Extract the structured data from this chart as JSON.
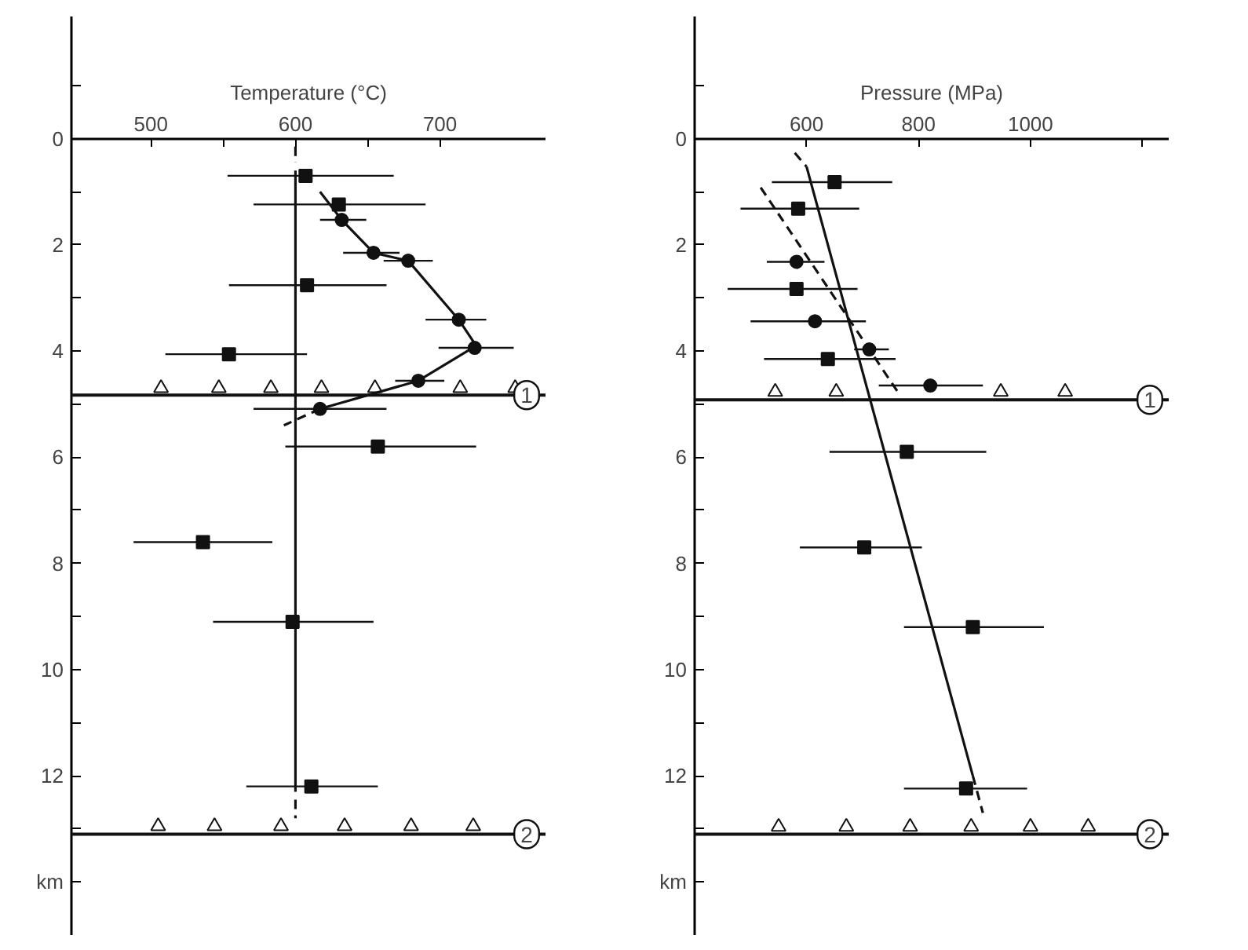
{
  "chart_data": [
    {
      "type": "scatter",
      "xlabel": "Temperature (°C)",
      "xlim": [
        445,
        773
      ],
      "ylim": [
        15,
        -2.3
      ],
      "xticks": [
        500,
        {
          "value": 550,
          "label": null
        },
        600,
        {
          "value": 650,
          "label": null
        },
        700
      ],
      "yticks": [
        {
          "value": -1,
          "label": null
        },
        0,
        {
          "value": 1,
          "label": null
        },
        2,
        {
          "value": 3,
          "label": null
        },
        4,
        {
          "value": 5,
          "label": null
        },
        6,
        {
          "value": 7,
          "label": null
        },
        8,
        {
          "value": 9,
          "label": null
        },
        10,
        {
          "value": 11,
          "label": null
        },
        12,
        {
          "value": 13,
          "label": null
        },
        {
          "value": 14,
          "label": "km"
        }
      ],
      "series": [
        {
          "marker": "square",
          "color": "#111111",
          "x": [
            607,
            630,
            608,
            554,
            657,
            536,
            598,
            611
          ],
          "values": [
            0.7,
            1.24,
            2.76,
            4.06,
            5.8,
            7.6,
            9.1,
            12.2
          ],
          "xerrors": [
            [
              553,
              668
            ],
            [
              571,
              690
            ],
            [
              554,
              663
            ],
            [
              510,
              608
            ],
            [
              593,
              725
            ],
            [
              488,
              584
            ],
            [
              543,
              654
            ],
            [
              566,
              657
            ]
          ]
        },
        {
          "marker": "circle",
          "color": "#111111",
          "x": [
            632,
            654,
            678,
            713,
            724,
            685,
            617
          ],
          "values": [
            1.53,
            2.15,
            2.3,
            3.41,
            3.94,
            4.56,
            5.09
          ],
          "xerrors": [
            [
              617,
              649
            ],
            [
              633,
              672
            ],
            [
              661,
              695
            ],
            [
              690,
              732
            ],
            [
              699,
              751
            ],
            [
              669,
              703
            ],
            [
              571,
              663
            ]
          ]
        },
        {
          "marker": "triangle",
          "color": "#ffffff",
          "x": [
            507,
            547,
            583,
            618,
            655,
            714,
            752
          ],
          "values": [
            4.7,
            4.7,
            4.7,
            4.7,
            4.7,
            4.7,
            4.7
          ]
        },
        {
          "marker": "triangle",
          "color": "#ffffff",
          "x": [
            505,
            544,
            590,
            634,
            680,
            723
          ],
          "values": [
            12.95,
            12.95,
            12.95,
            12.95,
            12.95,
            12.95
          ]
        },
        {
          "type": "line",
          "line_style": "solid",
          "color": "#111111",
          "x": [
            617,
            632,
            654,
            678,
            713,
            725,
            685,
            617
          ],
          "values": [
            1.0,
            1.53,
            2.15,
            2.3,
            3.41,
            3.9,
            4.56,
            5.09
          ]
        },
        {
          "type": "line",
          "line_style": "dashed",
          "color": "#111111",
          "x": [
            617,
            592
          ],
          "values": [
            5.09,
            5.4
          ]
        },
        {
          "type": "line",
          "line_style": "solid",
          "color": "#111111",
          "x": [
            600,
            600
          ],
          "values": [
            0.6,
            12.3
          ]
        },
        {
          "type": "line",
          "line_style": "dashed",
          "color": "#111111",
          "x": [
            600,
            600
          ],
          "values": [
            0.15,
            0.45
          ]
        },
        {
          "type": "line",
          "line_style": "dashed",
          "color": "#111111",
          "x": [
            600,
            600
          ],
          "values": [
            12.45,
            12.8
          ]
        }
      ],
      "ref_lines": [
        {
          "axis": "y",
          "value": 4.83
        },
        {
          "axis": "y",
          "value": 13.1
        }
      ],
      "annotations": [
        {
          "text": "1",
          "y": 4.83
        },
        {
          "text": "2",
          "y": 13.1
        }
      ]
    },
    {
      "type": "scatter",
      "xlabel": "Pressure (MPa)",
      "xlim": [
        400,
        1247
      ],
      "ylim": [
        15,
        -2.3
      ],
      "xticks": [
        600,
        800,
        1000,
        {
          "value": 1200,
          "label": null
        }
      ],
      "yticks": [
        {
          "value": -1,
          "label": null
        },
        0,
        {
          "value": 1,
          "label": null
        },
        2,
        {
          "value": 3,
          "label": null
        },
        4,
        {
          "value": 5,
          "label": null
        },
        6,
        {
          "value": 7,
          "label": null
        },
        8,
        {
          "value": 9,
          "label": null
        },
        10,
        {
          "value": 11,
          "label": null
        },
        12,
        {
          "value": 13,
          "label": null
        },
        {
          "value": 14,
          "label": "km"
        }
      ],
      "series": [
        {
          "marker": "square",
          "color": "#111111",
          "x": [
            650,
            585,
            582,
            638,
            779,
            703,
            897,
            885
          ],
          "values": [
            0.82,
            1.32,
            2.83,
            4.15,
            5.9,
            7.7,
            9.2,
            12.24
          ],
          "xerrors": [
            [
              538,
              753
            ],
            [
              482,
              694
            ],
            [
              459,
              691
            ],
            [
              524,
              759
            ],
            [
              641,
              921
            ],
            [
              588,
              806
            ],
            [
              774,
              1024
            ],
            [
              774,
              994
            ]
          ]
        },
        {
          "marker": "circle",
          "color": "#111111",
          "x": [
            582,
            615,
            712,
            821
          ],
          "values": [
            2.32,
            3.44,
            3.97,
            4.65
          ],
          "xerrors": [
            [
              529,
              632
            ],
            [
              500,
              706
            ],
            [
              685,
              747
            ],
            [
              729,
              915
            ]
          ]
        },
        {
          "marker": "triangle",
          "color": "#ffffff",
          "x": [
            544,
            653,
            947,
            1062
          ],
          "values": [
            4.77,
            4.77,
            4.77,
            4.77
          ]
        },
        {
          "marker": "triangle",
          "color": "#ffffff",
          "x": [
            550,
            671,
            785,
            894,
            1000,
            1103
          ],
          "values": [
            12.96,
            12.96,
            12.96,
            12.96,
            12.96,
            12.96
          ]
        },
        {
          "type": "line",
          "line_style": "solid",
          "color": "#111111",
          "x": [
            600,
            897
          ],
          "values": [
            0.53,
            12.0
          ]
        },
        {
          "type": "line",
          "line_style": "dashed",
          "color": "#111111",
          "x": [
            579,
            600
          ],
          "values": [
            0.27,
            0.53
          ]
        },
        {
          "type": "line",
          "line_style": "dashed",
          "color": "#111111",
          "x": [
            897,
            915
          ],
          "values": [
            12.0,
            12.7
          ]
        },
        {
          "type": "line",
          "line_style": "dashed",
          "color": "#111111",
          "x": [
            518,
            768
          ],
          "values": [
            0.92,
            4.85
          ]
        }
      ],
      "ref_lines": [
        {
          "axis": "y",
          "value": 4.92
        },
        {
          "axis": "y",
          "value": 13.1
        }
      ],
      "annotations": [
        {
          "text": "1",
          "y": 4.92
        },
        {
          "text": "2",
          "y": 13.1
        }
      ]
    }
  ]
}
